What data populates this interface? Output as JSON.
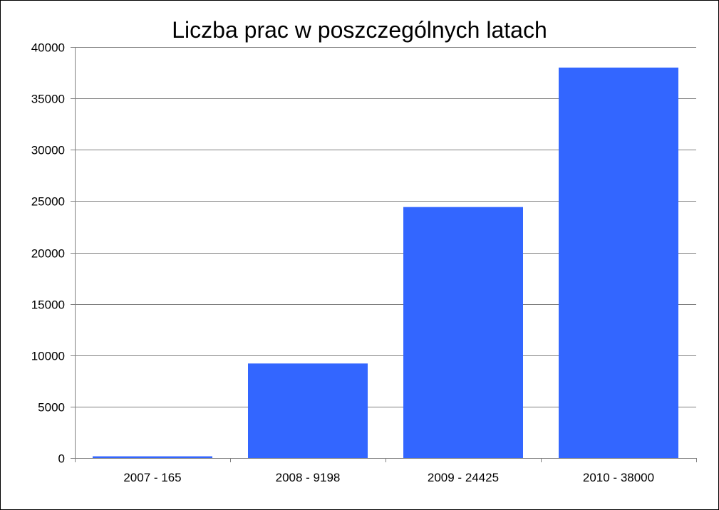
{
  "chart_data": {
    "type": "bar",
    "title": "Liczba prac w poszczególnych latach",
    "categories": [
      "2007 - 165",
      "2008 - 9198",
      "2009 - 24425",
      "2010 - 38000"
    ],
    "values": [
      165,
      9198,
      24425,
      38000
    ],
    "yticks": [
      "0",
      "5000",
      "10000",
      "15000",
      "20000",
      "25000",
      "30000",
      "35000",
      "40000"
    ],
    "ylim": [
      0,
      40000
    ],
    "grid": true,
    "legend": "none",
    "colors": {
      "bar": "#3366ff",
      "grid": "#7f7f7f",
      "axis": "#7f7f7f"
    }
  }
}
